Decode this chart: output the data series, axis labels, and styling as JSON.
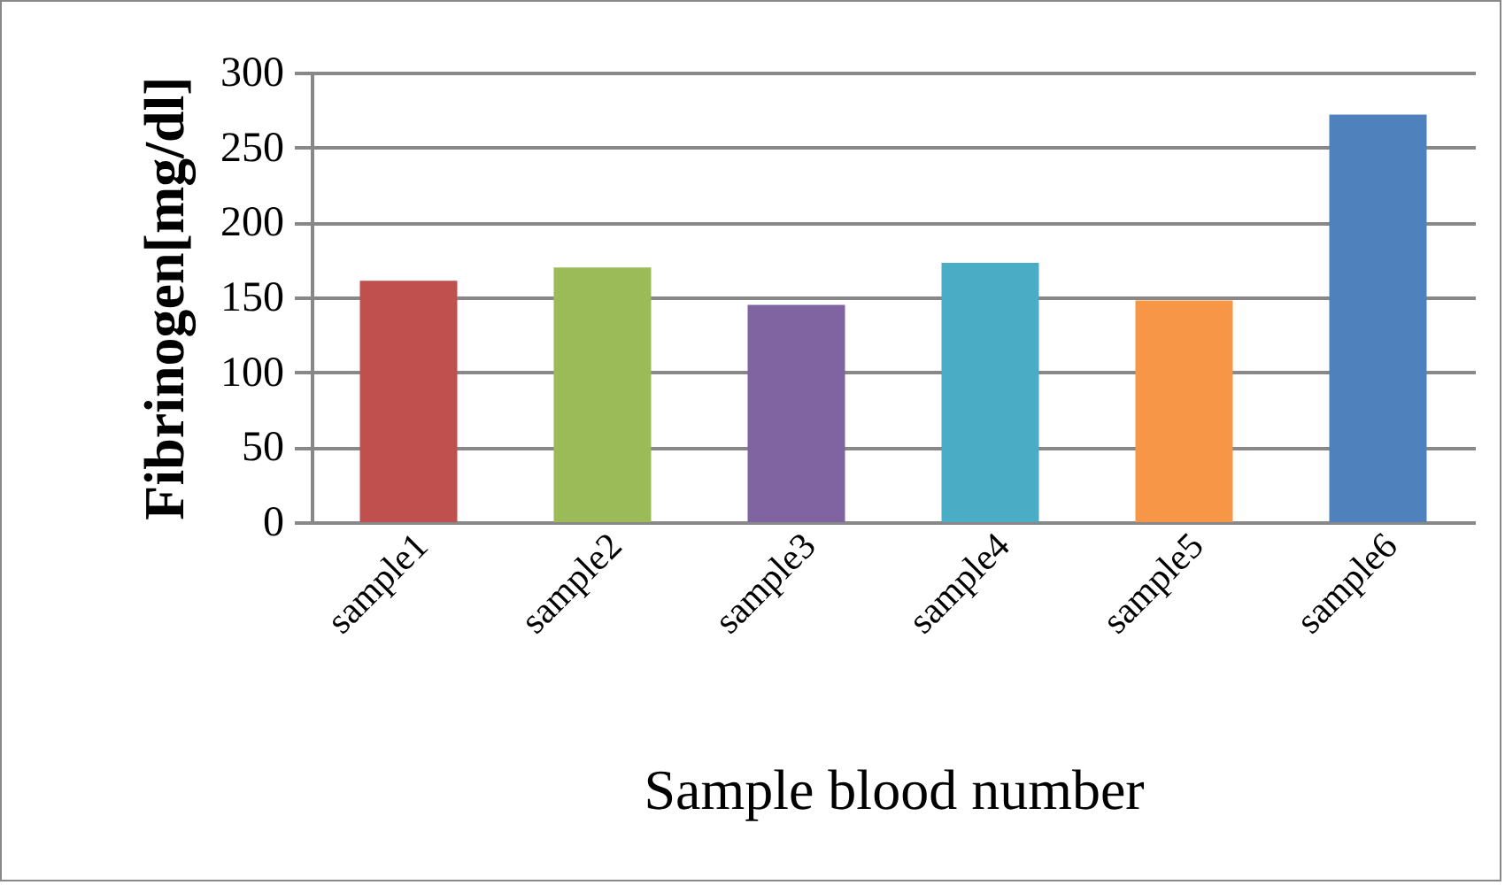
{
  "chart_data": {
    "type": "bar",
    "xlabel": "Sample blood number",
    "ylabel": "Fibrinogen[mg/dl]",
    "categories": [
      "sample1",
      "sample2",
      "sample3",
      "sample4",
      "sample5",
      "sample6"
    ],
    "values": [
      161,
      170,
      145,
      173,
      148,
      272
    ],
    "colors": [
      "#c0504d",
      "#9bbb59",
      "#8064a2",
      "#4bacc6",
      "#f79646",
      "#4f81bd"
    ],
    "ylim": [
      0,
      300
    ],
    "yticks": [
      0,
      50,
      100,
      150,
      200,
      250,
      300
    ],
    "grid": "y"
  }
}
